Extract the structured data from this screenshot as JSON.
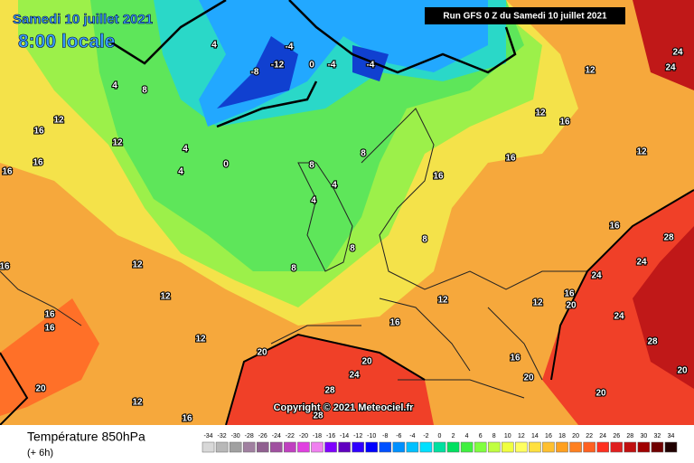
{
  "header": {
    "title": "Samedi 10 juillet 2021",
    "time": "8:00 locale",
    "run": "Run GFS 0 Z du Samedi 10 juillet 2021"
  },
  "copyright": "Copyright © 2021 Meteociel.fr",
  "legend": {
    "title": "Température 850hPa",
    "subtitle": "(+ 6h)",
    "labels": [
      -34,
      -32,
      -30,
      -28,
      -26,
      -24,
      -22,
      -20,
      -18,
      -16,
      -14,
      -12,
      -10,
      -8,
      -6,
      -4,
      -2,
      0,
      2,
      4,
      6,
      8,
      10,
      12,
      14,
      16,
      18,
      20,
      22,
      24,
      26,
      28,
      30,
      32,
      34
    ],
    "colors": [
      "#d8d8d8",
      "#b8b8b8",
      "#a0a0a0",
      "#a080a0",
      "#906090",
      "#a050a0",
      "#c040c0",
      "#e040e0",
      "#f080f0",
      "#8000ff",
      "#6000c0",
      "#3000ff",
      "#0000ff",
      "#0050ff",
      "#0090ff",
      "#00c0ff",
      "#00e0ff",
      "#00e0a0",
      "#00e060",
      "#40f040",
      "#80ff40",
      "#c0ff40",
      "#f0ff40",
      "#ffff60",
      "#ffe040",
      "#ffc030",
      "#ffa020",
      "#ff8020",
      "#ff6020",
      "#ff3020",
      "#e02020",
      "#c01010",
      "#a00000",
      "#700000",
      "#200000"
    ]
  },
  "contour_labels": [
    0,
    -12,
    -8,
    -4,
    0,
    -4,
    -4,
    4,
    4,
    8,
    4,
    4,
    8,
    8,
    4,
    4,
    8,
    8,
    8,
    16,
    16,
    12,
    16,
    12,
    12,
    16,
    28,
    24,
    24,
    16,
    20,
    24,
    28,
    20,
    20,
    20,
    16,
    12,
    12,
    16,
    20,
    24,
    28,
    28,
    20,
    20,
    12,
    16,
    12,
    12,
    12,
    16,
    16,
    16,
    16,
    16,
    12,
    12,
    16,
    24,
    24
  ]
}
